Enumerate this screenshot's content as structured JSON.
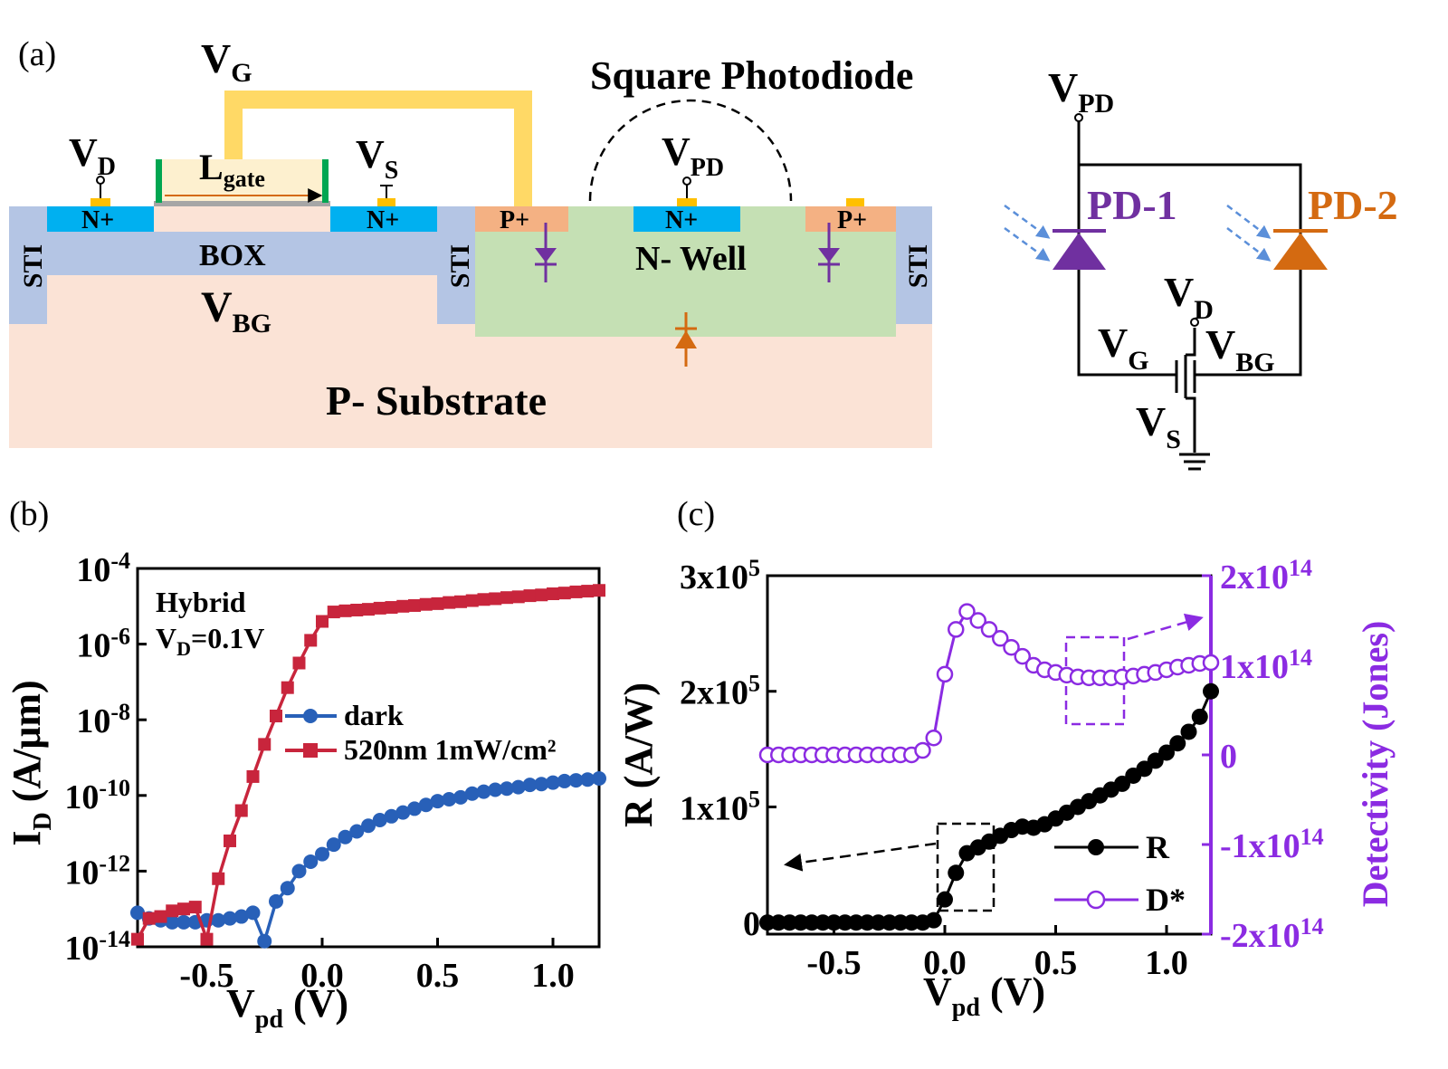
{
  "panel_a": {
    "label": "(a)",
    "title": "Square Photodiode",
    "vg": {
      "main": "V",
      "sub": "G"
    },
    "vd": {
      "main": "V",
      "sub": "D"
    },
    "vs": {
      "main": "V",
      "sub": "S"
    },
    "vpd": {
      "main": "V",
      "sub": "PD"
    },
    "vbg": {
      "main": "V",
      "sub": "BG"
    },
    "lgate": {
      "main": "L",
      "sub": "gate"
    },
    "nplus": "N+",
    "pplus": "P+",
    "box": "BOX",
    "sti": "STI",
    "nwell": "N- Well",
    "psub": "P- Substrate",
    "colors": {
      "sti": "#b4c5e4",
      "substrate": "#fbe3d6",
      "nwell": "#c5e0b4",
      "nplus": "#00b0f0",
      "pplus": "#f4b183",
      "gate_line": "#ffd966",
      "diode_purple": "#7030a0",
      "diode_orange": "#d46a11"
    }
  },
  "circuit": {
    "vpd": {
      "main": "V",
      "sub": "PD"
    },
    "pd1": "PD-1",
    "pd2": "PD-2",
    "vd": {
      "main": "V",
      "sub": "D"
    },
    "vg": {
      "main": "V",
      "sub": "G"
    },
    "vbg": {
      "main": "V",
      "sub": "BG"
    },
    "vs": {
      "main": "V",
      "sub": "S"
    }
  },
  "panel_b": {
    "label": "(b)",
    "annot1": "Hybrid",
    "annot2": {
      "main": "V",
      "sub": "D",
      "rest": "=0.1V"
    }
  },
  "panel_c": {
    "label": "(c)"
  },
  "chart_data": [
    {
      "type": "line",
      "panel": "(b)",
      "xlabel": {
        "main": "V",
        "sub": "pd",
        "rest": " (V)"
      },
      "ylabel": {
        "main": "I",
        "sub": "D",
        "rest": " (A/μm)"
      },
      "xlim": [
        -0.8,
        1.2
      ],
      "ylim_exp": [
        -14,
        -4
      ],
      "log_y": true,
      "xticks": [
        "-0.5",
        "0.0",
        "0.5",
        "1.0"
      ],
      "xtick_values": [
        -0.5,
        0.0,
        0.5,
        1.0
      ],
      "yticks": [
        {
          "base": "10",
          "exp": "-4"
        },
        {
          "base": "10",
          "exp": "-6"
        },
        {
          "base": "10",
          "exp": "-8"
        },
        {
          "base": "10",
          "exp": "-10"
        },
        {
          "base": "10",
          "exp": "-12"
        },
        {
          "base": "10",
          "exp": "-14"
        }
      ],
      "ytick_values": [
        -4,
        -6,
        -8,
        -10,
        -12,
        -14
      ],
      "legend_position": "middle",
      "series": [
        {
          "name": "dark",
          "color": "#2860b8",
          "marker": "circle",
          "x": [
            -0.8,
            -0.75,
            -0.7,
            -0.65,
            -0.6,
            -0.55,
            -0.5,
            -0.45,
            -0.4,
            -0.35,
            -0.3,
            -0.25,
            -0.2,
            -0.15,
            -0.1,
            -0.05,
            0.0,
            0.05,
            0.1,
            0.15,
            0.2,
            0.25,
            0.3,
            0.35,
            0.4,
            0.45,
            0.5,
            0.55,
            0.6,
            0.65,
            0.7,
            0.75,
            0.8,
            0.85,
            0.9,
            0.95,
            1.0,
            1.05,
            1.1,
            1.15,
            1.2
          ],
          "log10_y": [
            -13.1,
            -13.25,
            -13.3,
            -13.35,
            -13.35,
            -13.35,
            -13.3,
            -13.3,
            -13.25,
            -13.2,
            -13.1,
            -13.85,
            -12.8,
            -12.45,
            -12.0,
            -11.75,
            -11.55,
            -11.3,
            -11.1,
            -10.95,
            -10.8,
            -10.65,
            -10.55,
            -10.45,
            -10.35,
            -10.25,
            -10.15,
            -10.1,
            -10.05,
            -9.95,
            -9.9,
            -9.85,
            -9.82,
            -9.78,
            -9.72,
            -9.7,
            -9.66,
            -9.62,
            -9.6,
            -9.58,
            -9.55
          ]
        },
        {
          "name": "520nm 1mW/cm²",
          "color": "#c8253c",
          "marker": "square",
          "x": [
            -0.8,
            -0.75,
            -0.7,
            -0.65,
            -0.6,
            -0.55,
            -0.5,
            -0.45,
            -0.4,
            -0.35,
            -0.3,
            -0.25,
            -0.2,
            -0.15,
            -0.1,
            -0.05,
            0.0,
            0.05,
            0.1,
            0.15,
            0.2,
            0.25,
            0.3,
            0.35,
            0.4,
            0.45,
            0.5,
            0.55,
            0.6,
            0.65,
            0.7,
            0.75,
            0.8,
            0.85,
            0.9,
            0.95,
            1.0,
            1.05,
            1.1,
            1.15,
            1.2
          ],
          "log10_y": [
            -13.8,
            -13.25,
            -13.2,
            -13.05,
            -13.0,
            -12.95,
            -13.8,
            -12.2,
            -11.2,
            -10.4,
            -9.5,
            -8.65,
            -7.9,
            -7.15,
            -6.5,
            -5.9,
            -5.4,
            -5.15,
            -5.12,
            -5.1,
            -5.08,
            -5.05,
            -5.03,
            -5.0,
            -4.98,
            -4.95,
            -4.93,
            -4.9,
            -4.88,
            -4.85,
            -4.82,
            -4.8,
            -4.77,
            -4.75,
            -4.72,
            -4.7,
            -4.67,
            -4.65,
            -4.62,
            -4.6,
            -4.58
          ]
        }
      ]
    },
    {
      "type": "line",
      "panel": "(c)",
      "xlabel": {
        "main": "V",
        "sub": "pd",
        "rest": " (V)"
      },
      "ylabel": "R (A/W)",
      "y2label": "Detectivity (Jones)",
      "xlim": [
        -0.8,
        1.2
      ],
      "ylim": [
        -10000,
        300000
      ],
      "y2lim": [
        -200000000000000.0,
        200000000000000.0
      ],
      "xticks": [
        "-0.5",
        "0.0",
        "0.5",
        "1.0"
      ],
      "xtick_values": [
        -0.5,
        0.0,
        0.5,
        1.0
      ],
      "yticks": [
        {
          "base": "3x10",
          "exp": "5"
        },
        {
          "base": "2x10",
          "exp": "5"
        },
        {
          "base": "1x10",
          "exp": "5"
        },
        {
          "base": "0",
          "exp": ""
        }
      ],
      "ytick_values": [
        300000,
        200000,
        100000,
        0
      ],
      "y2ticks": [
        {
          "base": "2x10",
          "exp": "14"
        },
        {
          "base": "1x10",
          "exp": "14"
        },
        {
          "base": "0",
          "exp": ""
        },
        {
          "base": "-1x10",
          "exp": "14"
        },
        {
          "base": "-2x10",
          "exp": "14"
        }
      ],
      "y2tick_values": [
        200000000000000.0,
        100000000000000.0,
        0,
        -100000000000000.0,
        -200000000000000.0
      ],
      "legend_position": "bottom-right",
      "series": [
        {
          "name": "R",
          "axis": "left",
          "color": "#000000",
          "marker": "filled-circle",
          "x": [
            -0.8,
            -0.75,
            -0.7,
            -0.65,
            -0.6,
            -0.55,
            -0.5,
            -0.45,
            -0.4,
            -0.35,
            -0.3,
            -0.25,
            -0.2,
            -0.15,
            -0.1,
            -0.05,
            0.0,
            0.05,
            0.1,
            0.15,
            0.2,
            0.25,
            0.3,
            0.35,
            0.4,
            0.45,
            0.5,
            0.55,
            0.6,
            0.65,
            0.7,
            0.75,
            0.8,
            0.85,
            0.9,
            0.95,
            1.0,
            1.05,
            1.1,
            1.15,
            1.2
          ],
          "y": [
            0,
            0,
            0,
            0,
            0,
            0,
            0,
            0,
            0,
            0,
            0,
            0,
            0,
            0,
            0,
            2000,
            20000,
            43000,
            60000,
            65000,
            70000,
            75000,
            80000,
            83000,
            82000,
            85000,
            90000,
            95000,
            100000,
            105000,
            110000,
            115000,
            120000,
            127000,
            133000,
            140000,
            147000,
            155000,
            165000,
            178000,
            200000
          ]
        },
        {
          "name": "D*",
          "axis": "right",
          "color": "#8b2be2",
          "marker": "open-circle",
          "x": [
            -0.8,
            -0.75,
            -0.7,
            -0.65,
            -0.6,
            -0.55,
            -0.5,
            -0.45,
            -0.4,
            -0.35,
            -0.3,
            -0.25,
            -0.2,
            -0.15,
            -0.1,
            -0.05,
            0.0,
            0.05,
            0.1,
            0.15,
            0.2,
            0.25,
            0.3,
            0.35,
            0.4,
            0.45,
            0.5,
            0.55,
            0.6,
            0.65,
            0.7,
            0.75,
            0.8,
            0.85,
            0.9,
            0.95,
            1.0,
            1.05,
            1.1,
            1.15,
            1.2
          ],
          "y": [
            0,
            0,
            0,
            0,
            0,
            0,
            0,
            0,
            0,
            0,
            0,
            0,
            0,
            0,
            5000000000000.0,
            19000000000000.0,
            90000000000000.0,
            140000000000000.0,
            160000000000000.0,
            150000000000000.0,
            140000000000000.0,
            130000000000000.0,
            120000000000000.0,
            110000000000000.0,
            100000000000000.0,
            95000000000000.0,
            92000000000000.0,
            89000000000000.0,
            87000000000000.0,
            86000000000000.0,
            86000000000000.0,
            86000000000000.0,
            87000000000000.0,
            88000000000000.0,
            90000000000000.0,
            92000000000000.0,
            95000000000000.0,
            98000000000000.0,
            100000000000000.0,
            102000000000000.0,
            103000000000000.0
          ]
        }
      ]
    }
  ]
}
